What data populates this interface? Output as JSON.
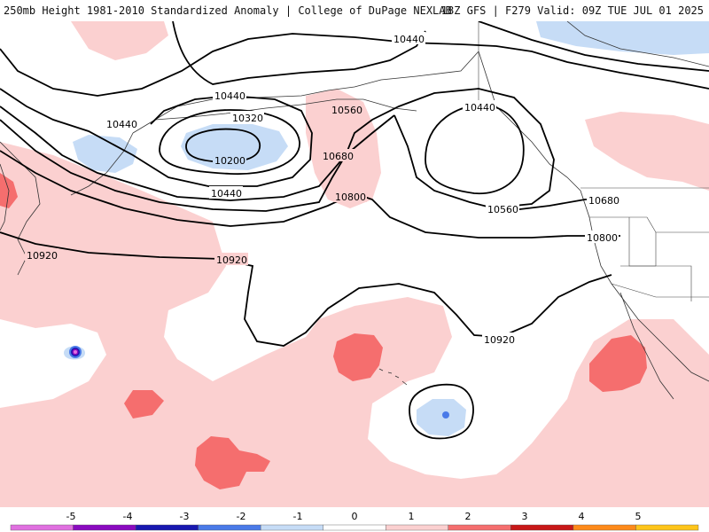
{
  "header": {
    "left_title": "250mb Height 1981-2010 Standardized Anomaly | College of DuPage NEXLAB",
    "right_title": "18Z GFS | F279 Valid: 09Z TUE JUL 01 2025"
  },
  "contour_labels": [
    "10440",
    "10440",
    "10440",
    "10440",
    "10320",
    "10200",
    "10560",
    "10680",
    "10800",
    "10440",
    "10560",
    "10680",
    "10800",
    "10920",
    "10920",
    "10920"
  ],
  "colorbar": {
    "ticks": [
      "-5",
      "-4",
      "-3",
      "-2",
      "-1",
      "0",
      "1",
      "2",
      "3",
      "4",
      "5"
    ],
    "colors": {
      "neg5": "#e070e0",
      "neg4": "#8a0ac0",
      "neg3": "#1818b0",
      "neg2": "#4a7ae8",
      "neg1": "#c6dcf6",
      "zero": "#ffffff",
      "pos1": "#fbd0d0",
      "pos2": "#f56e6e",
      "pos3": "#c81818",
      "pos4": "#ff8a1a",
      "pos5": "#ffc51a"
    }
  }
}
